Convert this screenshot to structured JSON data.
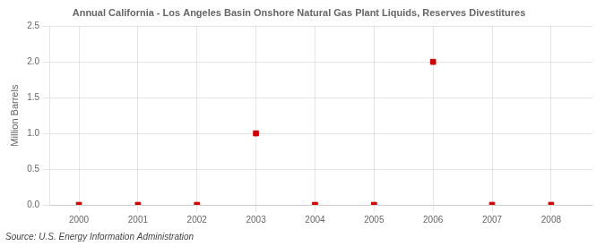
{
  "chart_data": {
    "type": "scatter",
    "title": "Annual California - Los Angeles Basin Onshore Natural Gas Plant Liquids, Reserves Divestitures",
    "ylabel": "Million Barrels",
    "source": "Source: U.S. Energy Information Administration",
    "x": [
      2000,
      2001,
      2002,
      2003,
      2004,
      2005,
      2006,
      2007,
      2008
    ],
    "values": [
      0.0,
      0.0,
      0.0,
      1.0,
      0.0,
      0.0,
      2.0,
      0.0,
      0.0
    ],
    "color": "#cc0000",
    "marker": "square",
    "xlim": [
      1999.5,
      2008.7
    ],
    "xticks": [
      2000,
      2001,
      2002,
      2003,
      2004,
      2005,
      2006,
      2007,
      2008
    ],
    "ylim": [
      0.0,
      2.5
    ],
    "yticks": [
      {
        "value": 0.0,
        "label": "0.0"
      },
      0.5,
      {
        "value": 1.0,
        "label": "1.0"
      },
      1.5,
      {
        "value": 2.0,
        "label": "2.0"
      },
      2.5
    ],
    "grid": true
  }
}
